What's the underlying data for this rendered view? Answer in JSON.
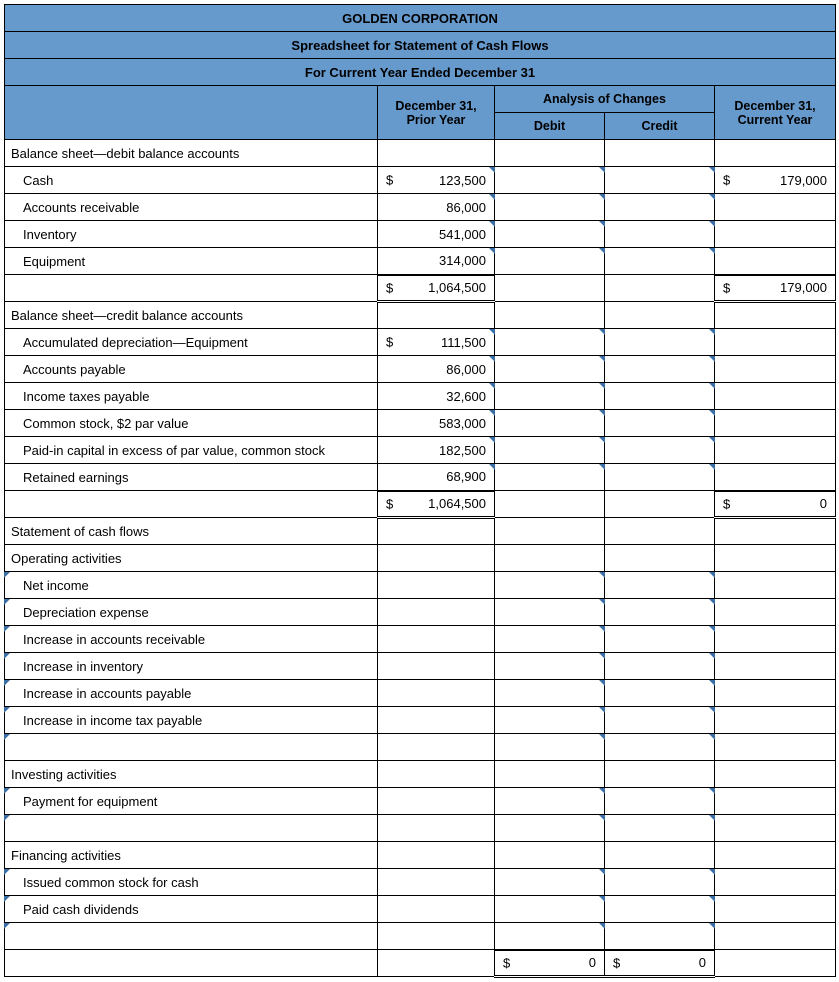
{
  "title": "GOLDEN CORPORATION",
  "subtitle": "Spreadsheet for Statement of Cash Flows",
  "period": "For Current Year Ended December 31",
  "analysis_header": "Analysis of Changes",
  "columns": {
    "prior": "December 31, Prior Year",
    "debit": "Debit",
    "credit": "Credit",
    "current": "December 31, Current Year"
  },
  "sections": {
    "debit_accounts": {
      "header": "Balance sheet—debit balance accounts",
      "rows": [
        {
          "label": "Cash",
          "prior": "123,500",
          "prior_dollar": true,
          "current": "179,000",
          "current_dollar": true
        },
        {
          "label": "Accounts receivable",
          "prior": "86,000"
        },
        {
          "label": "Inventory",
          "prior": "541,000"
        },
        {
          "label": "Equipment",
          "prior": "314,000"
        }
      ],
      "subtotal": {
        "prior": "1,064,500",
        "prior_dollar": true,
        "current": "179,000",
        "current_dollar": true
      }
    },
    "credit_accounts": {
      "header": "Balance sheet—credit balance accounts",
      "rows": [
        {
          "label": "Accumulated depreciation—Equipment",
          "prior": "111,500",
          "prior_dollar": true
        },
        {
          "label": "Accounts payable",
          "prior": "86,000"
        },
        {
          "label": "Income taxes payable",
          "prior": "32,600"
        },
        {
          "label": "Common stock, $2 par value",
          "prior": "583,000"
        },
        {
          "label": "Paid-in capital in excess of par value, common stock",
          "prior": "182,500"
        },
        {
          "label": "Retained earnings",
          "prior": "68,900"
        }
      ],
      "subtotal": {
        "prior": "1,064,500",
        "prior_dollar": true,
        "current": "0",
        "current_dollar": true
      }
    },
    "cashflows_header": "Statement of cash flows",
    "operating": {
      "header": "Operating activities",
      "rows": [
        "Net income",
        "Depreciation expense",
        "Increase in accounts receivable",
        "Increase in inventory",
        "Increase in accounts payable",
        "Increase in income tax payable"
      ]
    },
    "investing": {
      "header": "Investing activities",
      "rows": [
        "Payment for equipment"
      ]
    },
    "financing": {
      "header": "Financing activities",
      "rows": [
        "Issued common stock for cash",
        "Paid cash dividends"
      ]
    },
    "totals": {
      "debit": "0",
      "debit_dollar": true,
      "credit": "0",
      "credit_dollar": true
    }
  },
  "colors": {
    "header_bg": "#6699cc",
    "border": "#000000",
    "flag": "#3a6ea5"
  }
}
